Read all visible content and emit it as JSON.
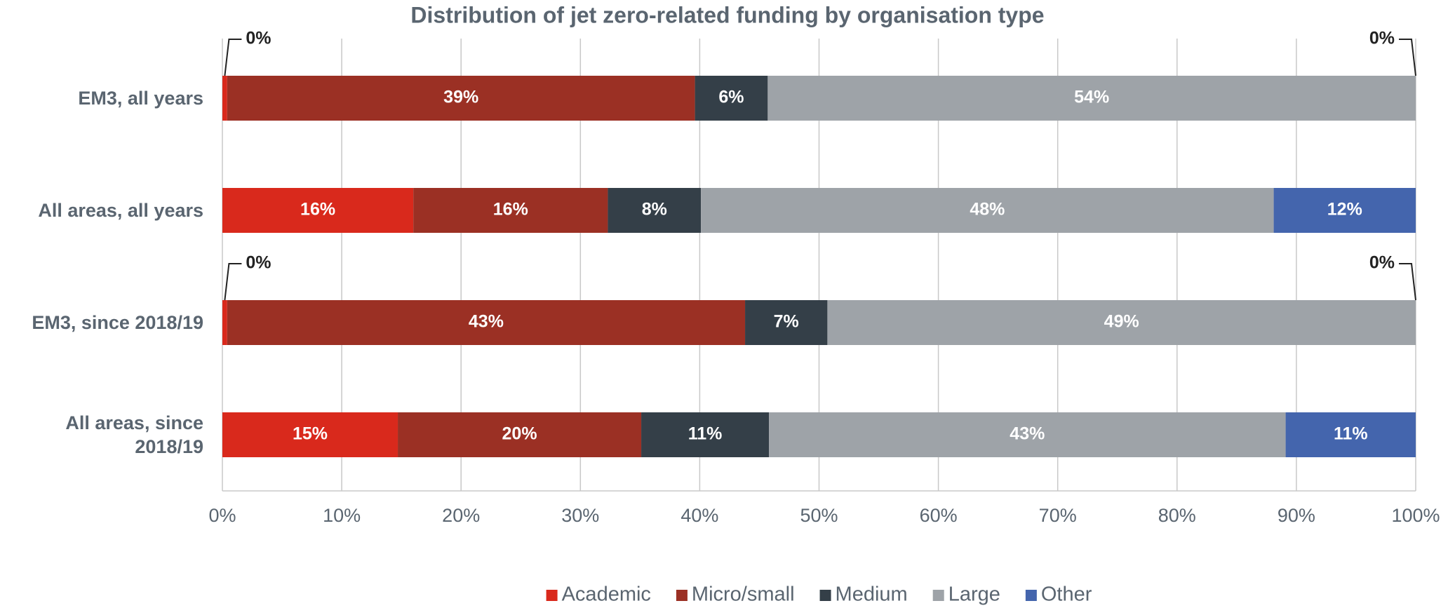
{
  "chart_data": {
    "type": "stacked-bar-horizontal",
    "title": "Distribution of jet zero-related funding by organisation type",
    "categories": [
      "EM3, all years",
      "All areas, all years",
      "EM3, since 2018/19",
      "All areas, since 2018/19"
    ],
    "series": [
      {
        "name": "Academic",
        "color": "#d9291c",
        "values": [
          0.4,
          16.0,
          0.4,
          14.7
        ],
        "value_labels": [
          "0%",
          "16%",
          "0%",
          "15%"
        ]
      },
      {
        "name": "Micro/small",
        "color": "#9b3024",
        "values": [
          39.2,
          16.3,
          43.4,
          20.4
        ],
        "value_labels": [
          "39%",
          "16%",
          "43%",
          "20%"
        ]
      },
      {
        "name": "Medium",
        "color": "#343f48",
        "values": [
          6.1,
          7.8,
          6.9,
          10.7
        ],
        "value_labels": [
          "6%",
          "8%",
          "7%",
          "11%"
        ]
      },
      {
        "name": "Large",
        "color": "#9ea3a8",
        "values": [
          54.3,
          48.0,
          49.3,
          43.3
        ],
        "value_labels": [
          "54%",
          "48%",
          "49%",
          "43%"
        ]
      },
      {
        "name": "Other",
        "color": "#4465ad",
        "values": [
          0,
          11.9,
          0,
          10.9
        ],
        "value_labels": [
          "0%",
          "12%",
          "0%",
          "11%"
        ]
      }
    ],
    "xlim": [
      0,
      100
    ],
    "xticks": [
      {
        "value": 0,
        "label": "0%"
      },
      {
        "value": 10,
        "label": "10%"
      },
      {
        "value": 20,
        "label": "20%"
      },
      {
        "value": 30,
        "label": "30%"
      },
      {
        "value": 40,
        "label": "40%"
      },
      {
        "value": 50,
        "label": "50%"
      },
      {
        "value": 60,
        "label": "60%"
      },
      {
        "value": 70,
        "label": "70%"
      },
      {
        "value": 80,
        "label": "80%"
      },
      {
        "value": 90,
        "label": "90%"
      },
      {
        "value": 100,
        "label": "100%"
      }
    ],
    "grid": true,
    "legend": "bottom"
  }
}
